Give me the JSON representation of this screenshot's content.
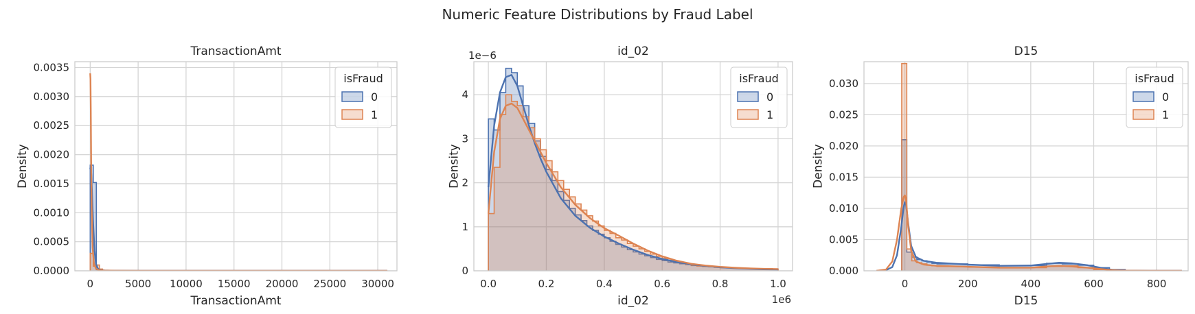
{
  "figure": {
    "title": "Numeric Feature Distributions by Fraud Label"
  },
  "colors": {
    "class0": "#4c72b0",
    "class1": "#dd8452",
    "grid": "#d5d5d5",
    "spine": "#cccccc"
  },
  "chart_data": [
    {
      "type": "histogram-kde",
      "title": "TransactionAmt",
      "xlabel": "TransactionAmt",
      "ylabel": "Density",
      "xlim": [
        -1600,
        32000
      ],
      "ylim": [
        0,
        0.0036
      ],
      "xticks": [
        0,
        5000,
        10000,
        15000,
        20000,
        25000,
        30000
      ],
      "xtick_labels": [
        "0",
        "5000",
        "10000",
        "15000",
        "20000",
        "25000",
        "30000"
      ],
      "yticks": [
        0,
        0.0005,
        0.001,
        0.0015,
        0.002,
        0.0025,
        0.003,
        0.0035
      ],
      "ytick_labels": [
        "0.0000",
        "0.0005",
        "0.0010",
        "0.0015",
        "0.0020",
        "0.0025",
        "0.0030",
        "0.0035"
      ],
      "legend": {
        "title": "isFraud",
        "entries": [
          "0",
          "1"
        ],
        "position": "top-right"
      },
      "series": [
        {
          "name": "0",
          "hist": {
            "edges": [
              0,
              320,
              640,
              960
            ],
            "density": [
              0.00182,
              0.00152,
              2e-05
            ]
          },
          "kde": {
            "x": [
              0,
              60,
              120,
              200,
              300,
              450,
              600,
              800,
              1000,
              1500,
              2500,
              5000,
              10000,
              20000,
              31000
            ],
            "y": [
              0.00175,
              0.00182,
              0.00165,
              0.0013,
              0.00085,
              0.00035,
              0.00012,
              4e-05,
              1.5e-05,
              6e-06,
              2e-06,
              1e-06,
              0,
              0,
              0
            ]
          }
        },
        {
          "name": "1",
          "hist": {
            "edges": [
              0,
              320,
              640,
              960,
              1280
            ],
            "density": [
              0.0003,
              8e-05,
              0.0001,
              3e-05
            ]
          },
          "kde": {
            "x": [
              0,
              30,
              60,
              100,
              150,
              250,
              400,
              600,
              800,
              1000,
              1500,
              2500,
              5000,
              10000,
              20000,
              31000
            ],
            "y": [
              0.0034,
              0.0033,
              0.0028,
              0.0019,
              0.0011,
              0.0004,
              0.00012,
              4e-05,
              2e-05,
              1e-05,
              5e-06,
              2e-06,
              1e-06,
              0,
              0,
              0
            ]
          }
        }
      ]
    },
    {
      "type": "histogram-kde",
      "title": "id_02",
      "xlabel": "id_02",
      "ylabel": "Density",
      "x_offset_text": "1e6",
      "y_offset_text": "1e−6",
      "xlim": [
        -0.05,
        1.05
      ],
      "ylim": [
        0,
        4.75
      ],
      "xticks": [
        0,
        0.2,
        0.4,
        0.6,
        0.8,
        1.0
      ],
      "xtick_labels": [
        "0.0",
        "0.2",
        "0.4",
        "0.6",
        "0.8",
        "1.0"
      ],
      "yticks": [
        0,
        1,
        2,
        3,
        4
      ],
      "ytick_labels": [
        "0",
        "1",
        "2",
        "3",
        "4"
      ],
      "legend": {
        "title": "isFraud",
        "entries": [
          "0",
          "1"
        ],
        "position": "top-right"
      },
      "series": [
        {
          "name": "0",
          "hist": {
            "edges": [
              0,
              0.02,
              0.04,
              0.06,
              0.08,
              0.1,
              0.12,
              0.14,
              0.16,
              0.18,
              0.2,
              0.22,
              0.24,
              0.26,
              0.28,
              0.3,
              0.32,
              0.34,
              0.36,
              0.38,
              0.4,
              0.42,
              0.44,
              0.46,
              0.48,
              0.5,
              0.52,
              0.54,
              0.56,
              0.58,
              0.6,
              0.62,
              0.64,
              0.66,
              0.68,
              0.7,
              0.72,
              0.74,
              0.76,
              0.78,
              0.8,
              0.82,
              0.84,
              0.86,
              0.88,
              0.9,
              0.92,
              0.94,
              0.96,
              0.98,
              1.0
            ],
            "density": [
              3.45,
              3.2,
              4.05,
              4.6,
              4.5,
              4.2,
              3.75,
              3.35,
              2.95,
              2.6,
              2.3,
              2.05,
              1.8,
              1.6,
              1.42,
              1.27,
              1.14,
              1.02,
              0.92,
              0.83,
              0.75,
              0.67,
              0.6,
              0.54,
              0.48,
              0.43,
              0.38,
              0.34,
              0.3,
              0.26,
              0.23,
              0.2,
              0.18,
              0.16,
              0.14,
              0.12,
              0.11,
              0.1,
              0.09,
              0.08,
              0.07,
              0.07,
              0.06,
              0.06,
              0.05,
              0.05,
              0.05,
              0.04,
              0.04,
              0.04
            ]
          },
          "kde": {
            "x": [
              0,
              0.01,
              0.02,
              0.04,
              0.06,
              0.08,
              0.1,
              0.12,
              0.14,
              0.16,
              0.18,
              0.2,
              0.25,
              0.3,
              0.35,
              0.4,
              0.45,
              0.5,
              0.55,
              0.6,
              0.65,
              0.7,
              0.75,
              0.8,
              0.85,
              0.9,
              0.95,
              1.0
            ],
            "y": [
              1.9,
              2.6,
              3.3,
              4.05,
              4.4,
              4.45,
              4.2,
              3.75,
              3.3,
              2.9,
              2.55,
              2.25,
              1.65,
              1.25,
              0.98,
              0.78,
              0.62,
              0.48,
              0.36,
              0.27,
              0.2,
              0.15,
              0.11,
              0.08,
              0.06,
              0.045,
              0.035,
              0.03
            ]
          }
        },
        {
          "name": "1",
          "hist": {
            "edges": [
              0,
              0.02,
              0.04,
              0.06,
              0.08,
              0.1,
              0.12,
              0.14,
              0.16,
              0.18,
              0.2,
              0.22,
              0.24,
              0.26,
              0.28,
              0.3,
              0.32,
              0.34,
              0.36,
              0.38,
              0.4,
              0.42,
              0.44,
              0.46,
              0.48,
              0.5,
              0.52,
              0.54,
              0.56,
              0.58,
              0.6,
              0.62,
              0.64,
              0.66,
              0.68,
              0.7,
              0.72,
              0.74,
              0.76,
              0.78,
              0.8,
              0.82,
              0.84,
              0.86,
              0.88,
              0.9,
              0.92,
              0.94,
              0.96,
              0.98,
              1.0
            ],
            "density": [
              1.3,
              2.35,
              3.55,
              4.0,
              3.85,
              3.75,
              3.5,
              3.25,
              3.0,
              2.75,
              2.5,
              2.25,
              2.05,
              1.85,
              1.68,
              1.52,
              1.38,
              1.25,
              1.13,
              1.02,
              0.92,
              0.85,
              0.75,
              0.7,
              0.62,
              0.56,
              0.5,
              0.44,
              0.38,
              0.33,
              0.28,
              0.24,
              0.21,
              0.18,
              0.15,
              0.13,
              0.11,
              0.1,
              0.09,
              0.08,
              0.07,
              0.07,
              0.06,
              0.06,
              0.06,
              0.05,
              0.05,
              0.05,
              0.05,
              0.04
            ]
          },
          "kde": {
            "x": [
              0,
              0.01,
              0.02,
              0.04,
              0.06,
              0.08,
              0.1,
              0.12,
              0.14,
              0.16,
              0.18,
              0.2,
              0.25,
              0.3,
              0.35,
              0.4,
              0.45,
              0.5,
              0.55,
              0.6,
              0.65,
              0.7,
              0.75,
              0.8,
              0.85,
              0.9,
              0.95,
              1.0
            ],
            "y": [
              1.3,
              2.0,
              2.7,
              3.45,
              3.75,
              3.8,
              3.7,
              3.45,
              3.2,
              2.95,
              2.7,
              2.45,
              1.9,
              1.5,
              1.2,
              0.97,
              0.8,
              0.62,
              0.46,
              0.33,
              0.23,
              0.16,
              0.12,
              0.09,
              0.07,
              0.055,
              0.045,
              0.04
            ]
          }
        }
      ]
    },
    {
      "type": "histogram-kde",
      "title": "D15",
      "xlabel": "D15",
      "ylabel": "Density",
      "xlim": [
        -130,
        900
      ],
      "ylim": [
        0,
        0.0335
      ],
      "xticks": [
        0,
        200,
        400,
        600,
        800
      ],
      "xtick_labels": [
        "0",
        "200",
        "400",
        "600",
        "800"
      ],
      "yticks": [
        0,
        0.005,
        0.01,
        0.015,
        0.02,
        0.025,
        0.03
      ],
      "ytick_labels": [
        "0.000",
        "0.005",
        "0.010",
        "0.015",
        "0.020",
        "0.025",
        "0.030"
      ],
      "legend": {
        "title": "isFraud",
        "entries": [
          "0",
          "1"
        ],
        "position": "top-right"
      },
      "series": [
        {
          "name": "0",
          "hist": {
            "edges": [
              -10,
              6,
              22,
              38,
              54,
              70,
              86,
              102,
              200,
              300,
              400,
              450,
              500,
              550,
              600,
              650,
              700
            ],
            "density": [
              0.021,
              0.003,
              0.0022,
              0.0018,
              0.0016,
              0.0014,
              0.0012,
              0.0011,
              0.00095,
              0.0008,
              0.00085,
              0.0012,
              0.0011,
              0.0009,
              0.0005,
              0.0002
            ]
          },
          "kde": {
            "x": [
              -90,
              -60,
              -40,
              -25,
              -12,
              -4,
              0,
              4,
              10,
              20,
              35,
              60,
              100,
              200,
              300,
              400,
              450,
              490,
              530,
              580,
              620,
              660,
              700,
              780,
              880
            ],
            "y": [
              0,
              0.0001,
              0.0006,
              0.0025,
              0.0068,
              0.0102,
              0.011,
              0.0105,
              0.0078,
              0.004,
              0.0022,
              0.0016,
              0.0013,
              0.001,
              0.0008,
              0.00085,
              0.0011,
              0.0013,
              0.0012,
              0.0009,
              0.0005,
              0.00015,
              3e-05,
              0,
              0
            ]
          }
        },
        {
          "name": "1",
          "hist": {
            "edges": [
              -10,
              6,
              22,
              38,
              54,
              70,
              86,
              102,
              200,
              300,
              400,
              450,
              500,
              550,
              600,
              650,
              700
            ],
            "density": [
              0.0332,
              0.0035,
              0.0016,
              0.0013,
              0.0011,
              0.0009,
              0.0008,
              0.0007,
              0.0006,
              0.0005,
              0.0005,
              0.0007,
              0.0008,
              0.0005,
              0.0002,
              0.0001
            ]
          },
          "kde": {
            "x": [
              -90,
              -60,
              -40,
              -25,
              -12,
              -4,
              0,
              4,
              10,
              20,
              35,
              60,
              100,
              200,
              300,
              400,
              450,
              490,
              530,
              580,
              620,
              660,
              700,
              780,
              880
            ],
            "y": [
              0,
              0.0002,
              0.0015,
              0.005,
              0.0098,
              0.0118,
              0.0121,
              0.0112,
              0.0075,
              0.0032,
              0.0015,
              0.001,
              0.0008,
              0.00065,
              0.0005,
              0.0005,
              0.0007,
              0.0008,
              0.0007,
              0.0005,
              0.0003,
              0.0001,
              2e-05,
              0,
              0
            ]
          }
        }
      ]
    }
  ]
}
